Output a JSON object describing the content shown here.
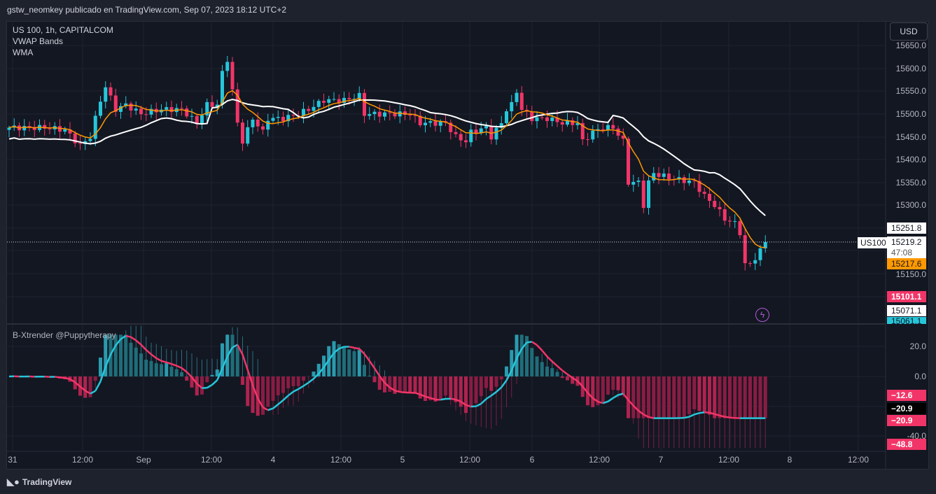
{
  "header": "gstw_neomkey publicado en TradingView.com, Sep 07, 2023 18:12 UTC+2",
  "legend": {
    "symbol": "US 100, 1h, CAPITALCOM",
    "ind1": "VWAP Bands",
    "ind2": "WMA",
    "osc": "B-Xtrender @Puppytherapy"
  },
  "currency": "USD",
  "price_axis": [
    "15650.0",
    "15600.0",
    "15550.0",
    "15500.0",
    "15450.0",
    "15400.0",
    "15350.0",
    "15300.0",
    "15150.0"
  ],
  "price_tags": {
    "vwap": "15251.8",
    "symbol": "US100",
    "last": "15219.2",
    "countdown": "47:08",
    "wma": "15217.6",
    "t1": "15101.1",
    "t2": "15071.1",
    "t3": "15061.1"
  },
  "osc_axis": [
    "20.0",
    "0.0",
    "-40.0"
  ],
  "osc_tags": {
    "a": "−12.6",
    "b": "−20.9",
    "c": "−20.9",
    "d": "−48.8"
  },
  "time_axis": [
    "31",
    "12:00",
    "Sep",
    "12:00",
    "4",
    "12:00",
    "5",
    "12:00",
    "6",
    "12:00",
    "7",
    "12:00",
    "8",
    "12:00"
  ],
  "footer": "TradingView",
  "colors": {
    "up": "#26c6da",
    "down": "#f23568",
    "wma": "#ff9800",
    "vwap": "#ffffff"
  },
  "chart_data": {
    "type": "candlestick",
    "bars": 150,
    "close_keypoints": [
      [
        0,
        15470
      ],
      [
        7,
        15470
      ],
      [
        11,
        15465
      ],
      [
        14,
        15430
      ],
      [
        16,
        15450
      ],
      [
        18,
        15530
      ],
      [
        19,
        15560
      ],
      [
        21,
        15510
      ],
      [
        23,
        15520
      ],
      [
        26,
        15500
      ],
      [
        30,
        15510
      ],
      [
        34,
        15510
      ],
      [
        37,
        15480
      ],
      [
        39,
        15520
      ],
      [
        41,
        15520
      ],
      [
        42,
        15590
      ],
      [
        43,
        15620
      ],
      [
        45,
        15480
      ],
      [
        46,
        15440
      ],
      [
        48,
        15490
      ],
      [
        50,
        15460
      ],
      [
        51,
        15490
      ],
      [
        54,
        15490
      ],
      [
        57,
        15500
      ],
      [
        59,
        15510
      ],
      [
        62,
        15530
      ],
      [
        66,
        15530
      ],
      [
        69,
        15540
      ],
      [
        70,
        15500
      ],
      [
        73,
        15500
      ],
      [
        79,
        15500
      ],
      [
        81,
        15480
      ],
      [
        86,
        15480
      ],
      [
        88,
        15450
      ],
      [
        90,
        15440
      ],
      [
        91,
        15460
      ],
      [
        94,
        15470
      ],
      [
        95,
        15450
      ],
      [
        97,
        15480
      ],
      [
        98,
        15510
      ],
      [
        99,
        15520
      ],
      [
        100,
        15550
      ],
      [
        101,
        15510
      ],
      [
        103,
        15490
      ],
      [
        106,
        15490
      ],
      [
        109,
        15480
      ],
      [
        112,
        15480
      ],
      [
        113,
        15440
      ],
      [
        115,
        15460
      ],
      [
        117,
        15470
      ],
      [
        119,
        15470
      ],
      [
        121,
        15440
      ],
      [
        122,
        15350
      ],
      [
        124,
        15350
      ],
      [
        125,
        15300
      ],
      [
        126,
        15350
      ],
      [
        127,
        15370
      ],
      [
        130,
        15360
      ],
      [
        135,
        15350
      ],
      [
        137,
        15320
      ],
      [
        139,
        15300
      ],
      [
        141,
        15270
      ],
      [
        143,
        15260
      ],
      [
        144,
        15240
      ],
      [
        145,
        15170
      ],
      [
        146,
        15170
      ],
      [
        148,
        15200
      ],
      [
        149,
        15219
      ]
    ],
    "ylim": [
      15050,
      15680
    ]
  }
}
